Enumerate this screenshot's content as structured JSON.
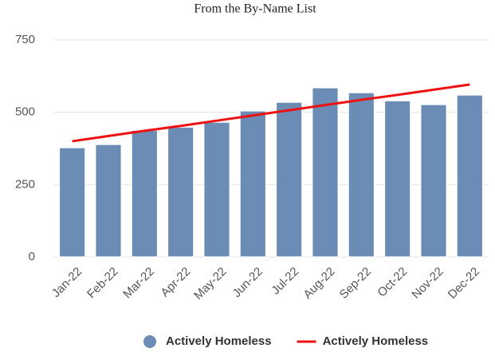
{
  "chart_data": {
    "type": "bar",
    "title": "From the By-Name List",
    "categories": [
      "Jan-22",
      "Feb-22",
      "Mar-22",
      "Apr-22",
      "May-22",
      "Jun-22",
      "Jul-22",
      "Aug-22",
      "Sep-22",
      "Oct-22",
      "Nov-22",
      "Dec-22"
    ],
    "series": [
      {
        "name": "Actively Homeless",
        "type": "bar",
        "color": "#6b8db5",
        "values": [
          378,
          389,
          438,
          449,
          466,
          505,
          535,
          585,
          568,
          540,
          527,
          560
        ]
      },
      {
        "name": "Actively Homeless",
        "type": "line",
        "color": "#ee1111",
        "values": [
          400,
          418,
          436,
          453,
          471,
          489,
          507,
          525,
          543,
          560,
          578,
          596
        ]
      }
    ],
    "ylim": [
      0,
      750
    ],
    "yticks": [
      0,
      250,
      500,
      750
    ],
    "grid": true,
    "legend": "bottom"
  }
}
